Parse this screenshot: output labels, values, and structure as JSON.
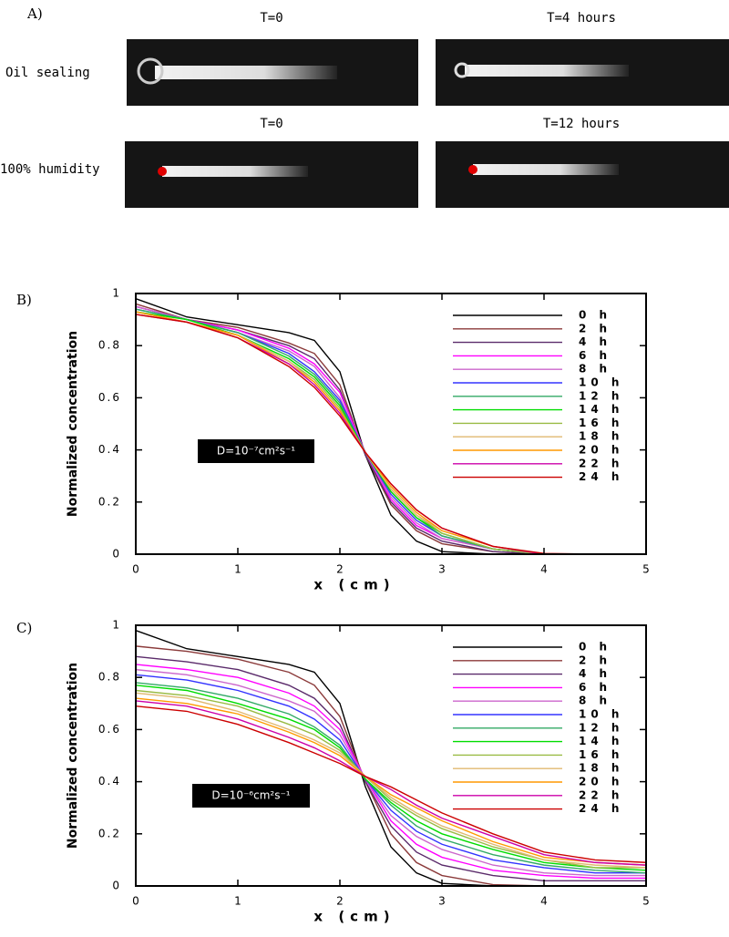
{
  "panel_a": {
    "label": "A)",
    "rows": [
      {
        "name": "Oil sealing",
        "images": [
          "T=0",
          "T=4 hours"
        ]
      },
      {
        "name": "100% humidity",
        "images": [
          "T=0",
          "T=12 hours"
        ]
      }
    ]
  },
  "chart_data": [
    {
      "type": "line",
      "label": "B)",
      "annotation": "D=10⁻⁷cm²s⁻¹",
      "xlabel": "x (cm)",
      "ylabel": "Normalized concentration",
      "xlim": [
        0,
        5
      ],
      "ylim": [
        0,
        1
      ],
      "xticks": [
        0,
        1,
        2,
        3,
        4,
        5
      ],
      "yticks": [
        0,
        0.2,
        0.4,
        0.6,
        0.8,
        1
      ],
      "x": [
        0,
        0.5,
        1,
        1.5,
        1.75,
        2,
        2.25,
        2.5,
        2.75,
        3,
        3.5,
        4,
        4.5,
        5
      ],
      "series": [
        {
          "name": "0 h",
          "color": "#000000",
          "values": [
            0.98,
            0.91,
            0.88,
            0.85,
            0.82,
            0.7,
            0.38,
            0.15,
            0.05,
            0.01,
            0,
            0,
            0,
            0
          ]
        },
        {
          "name": "2 h",
          "color": "#8b3a3a",
          "values": [
            0.96,
            0.9,
            0.87,
            0.81,
            0.77,
            0.65,
            0.38,
            0.19,
            0.09,
            0.04,
            0.01,
            0,
            0,
            0
          ]
        },
        {
          "name": "4 h",
          "color": "#5a2a6a",
          "values": [
            0.95,
            0.9,
            0.86,
            0.8,
            0.75,
            0.63,
            0.38,
            0.2,
            0.1,
            0.05,
            0.01,
            0,
            0,
            0
          ]
        },
        {
          "name": "6 h",
          "color": "#ff00ff",
          "values": [
            0.95,
            0.9,
            0.86,
            0.79,
            0.73,
            0.62,
            0.39,
            0.21,
            0.11,
            0.06,
            0.02,
            0,
            0,
            0
          ]
        },
        {
          "name": "8 h",
          "color": "#cc66cc",
          "values": [
            0.95,
            0.9,
            0.85,
            0.78,
            0.72,
            0.6,
            0.39,
            0.22,
            0.12,
            0.06,
            0.02,
            0,
            0,
            0
          ]
        },
        {
          "name": "10 h",
          "color": "#3333ff",
          "values": [
            0.94,
            0.9,
            0.85,
            0.77,
            0.7,
            0.59,
            0.39,
            0.23,
            0.13,
            0.07,
            0.02,
            0,
            0,
            0
          ]
        },
        {
          "name": "12 h",
          "color": "#33aa66",
          "values": [
            0.94,
            0.9,
            0.85,
            0.76,
            0.69,
            0.58,
            0.39,
            0.24,
            0.14,
            0.07,
            0.02,
            0,
            0,
            0
          ]
        },
        {
          "name": "14 h",
          "color": "#00dd00",
          "values": [
            0.93,
            0.9,
            0.84,
            0.75,
            0.68,
            0.57,
            0.39,
            0.24,
            0.14,
            0.08,
            0.02,
            0,
            0,
            0
          ]
        },
        {
          "name": "16 h",
          "color": "#99bb44",
          "values": [
            0.93,
            0.89,
            0.84,
            0.74,
            0.67,
            0.56,
            0.39,
            0.25,
            0.15,
            0.08,
            0.02,
            0,
            0,
            0
          ]
        },
        {
          "name": "18 h",
          "color": "#e0b870",
          "values": [
            0.93,
            0.89,
            0.84,
            0.74,
            0.66,
            0.55,
            0.39,
            0.25,
            0.15,
            0.09,
            0.03,
            0,
            0,
            0
          ]
        },
        {
          "name": "20 h",
          "color": "#ff9900",
          "values": [
            0.93,
            0.89,
            0.84,
            0.73,
            0.66,
            0.55,
            0.39,
            0.26,
            0.16,
            0.09,
            0.03,
            0,
            0,
            0
          ]
        },
        {
          "name": "22 h",
          "color": "#cc00aa",
          "values": [
            0.92,
            0.89,
            0.83,
            0.73,
            0.65,
            0.54,
            0.39,
            0.27,
            0.17,
            0.1,
            0.03,
            0,
            0,
            0
          ]
        },
        {
          "name": "24 h",
          "color": "#cc0000",
          "values": [
            0.92,
            0.89,
            0.83,
            0.72,
            0.64,
            0.53,
            0.39,
            0.27,
            0.17,
            0.1,
            0.03,
            0.003,
            0,
            0
          ]
        }
      ]
    },
    {
      "type": "line",
      "label": "C)",
      "annotation": "D=10⁻⁶cm²s⁻¹",
      "xlabel": "x (cm)",
      "ylabel": "Normalized concentration",
      "xlim": [
        0,
        5
      ],
      "ylim": [
        0,
        1
      ],
      "xticks": [
        0,
        1,
        2,
        3,
        4,
        5
      ],
      "yticks": [
        0,
        0.2,
        0.4,
        0.6,
        0.8,
        1
      ],
      "x": [
        0,
        0.5,
        1,
        1.5,
        1.75,
        2,
        2.25,
        2.5,
        2.75,
        3,
        3.5,
        4,
        4.5,
        5
      ],
      "series": [
        {
          "name": "0 h",
          "color": "#000000",
          "values": [
            0.98,
            0.91,
            0.88,
            0.85,
            0.82,
            0.7,
            0.38,
            0.15,
            0.05,
            0.01,
            0,
            0,
            0,
            0
          ]
        },
        {
          "name": "2 h",
          "color": "#8b3a3a",
          "values": [
            0.92,
            0.9,
            0.87,
            0.82,
            0.77,
            0.65,
            0.4,
            0.2,
            0.09,
            0.04,
            0.005,
            0,
            0,
            0
          ]
        },
        {
          "name": "4 h",
          "color": "#5a2a6a",
          "values": [
            0.88,
            0.86,
            0.83,
            0.77,
            0.72,
            0.62,
            0.4,
            0.23,
            0.13,
            0.08,
            0.04,
            0.02,
            0.02,
            0.02
          ]
        },
        {
          "name": "6 h",
          "color": "#ff00ff",
          "values": [
            0.85,
            0.83,
            0.8,
            0.74,
            0.69,
            0.6,
            0.41,
            0.25,
            0.16,
            0.11,
            0.06,
            0.04,
            0.03,
            0.03
          ]
        },
        {
          "name": "8 h",
          "color": "#cc66cc",
          "values": [
            0.83,
            0.81,
            0.77,
            0.71,
            0.67,
            0.58,
            0.41,
            0.27,
            0.19,
            0.14,
            0.08,
            0.05,
            0.04,
            0.04
          ]
        },
        {
          "name": "10 h",
          "color": "#3333ff",
          "values": [
            0.81,
            0.79,
            0.75,
            0.69,
            0.64,
            0.56,
            0.41,
            0.29,
            0.21,
            0.16,
            0.1,
            0.07,
            0.05,
            0.05
          ]
        },
        {
          "name": "12 h",
          "color": "#33aa66",
          "values": [
            0.78,
            0.76,
            0.72,
            0.66,
            0.61,
            0.54,
            0.41,
            0.31,
            0.23,
            0.18,
            0.12,
            0.08,
            0.06,
            0.05
          ]
        },
        {
          "name": "14 h",
          "color": "#00dd00",
          "values": [
            0.77,
            0.75,
            0.7,
            0.64,
            0.6,
            0.53,
            0.41,
            0.32,
            0.25,
            0.2,
            0.14,
            0.09,
            0.07,
            0.06
          ]
        },
        {
          "name": "16 h",
          "color": "#99bb44",
          "values": [
            0.75,
            0.73,
            0.69,
            0.62,
            0.58,
            0.52,
            0.42,
            0.33,
            0.27,
            0.22,
            0.15,
            0.1,
            0.07,
            0.07
          ]
        },
        {
          "name": "18 h",
          "color": "#e0b870",
          "values": [
            0.74,
            0.72,
            0.67,
            0.6,
            0.56,
            0.51,
            0.42,
            0.34,
            0.28,
            0.23,
            0.16,
            0.1,
            0.08,
            0.07
          ]
        },
        {
          "name": "20 h",
          "color": "#ff9900",
          "values": [
            0.72,
            0.7,
            0.66,
            0.59,
            0.55,
            0.5,
            0.42,
            0.35,
            0.3,
            0.25,
            0.17,
            0.11,
            0.09,
            0.08
          ]
        },
        {
          "name": "22 h",
          "color": "#cc00aa",
          "values": [
            0.71,
            0.69,
            0.64,
            0.57,
            0.53,
            0.48,
            0.42,
            0.37,
            0.31,
            0.26,
            0.19,
            0.12,
            0.09,
            0.08
          ]
        },
        {
          "name": "24 h",
          "color": "#cc0000",
          "values": [
            0.69,
            0.67,
            0.62,
            0.55,
            0.51,
            0.47,
            0.42,
            0.38,
            0.33,
            0.28,
            0.2,
            0.13,
            0.1,
            0.09
          ]
        }
      ]
    }
  ]
}
